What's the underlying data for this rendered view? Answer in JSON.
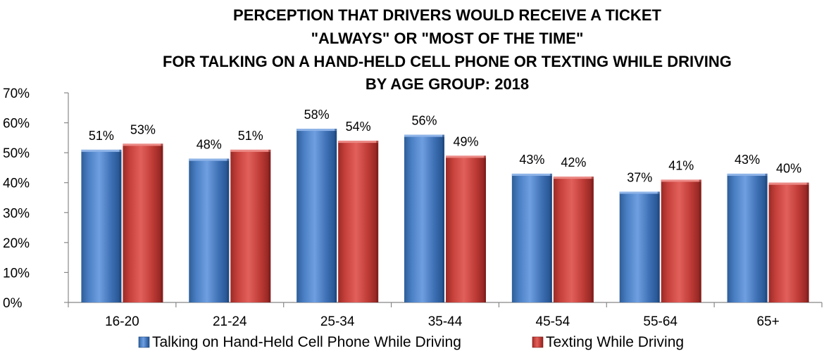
{
  "chart_data": {
    "type": "bar",
    "title_lines": [
      "PERCEPTION THAT DRIVERS WOULD RECEIVE A TICKET",
      "\"ALWAYS\" OR \"MOST OF THE TIME\"",
      "FOR TALKING ON A HAND-HELD CELL PHONE OR TEXTING WHILE DRIVING",
      "BY AGE GROUP:  2018"
    ],
    "xlabel": "",
    "ylabel": "",
    "categories": [
      "16-20",
      "21-24",
      "25-34",
      "35-44",
      "45-54",
      "55-64",
      "65+"
    ],
    "series": [
      {
        "name": "Talking on Hand-Held Cell Phone While Driving",
        "color": "#4f81bd",
        "values": [
          51,
          48,
          58,
          56,
          43,
          37,
          43
        ],
        "labels": [
          "51%",
          "48%",
          "58%",
          "56%",
          "43%",
          "37%",
          "43%"
        ]
      },
      {
        "name": "Texting While Driving",
        "color": "#c0504d",
        "values": [
          53,
          51,
          54,
          49,
          42,
          41,
          40
        ],
        "labels": [
          "53%",
          "51%",
          "54%",
          "49%",
          "42%",
          "41%",
          "40%"
        ]
      }
    ],
    "ylim": [
      0,
      70
    ],
    "yticks": [
      0,
      10,
      20,
      30,
      40,
      50,
      60,
      70
    ],
    "ytick_labels": [
      "0%",
      "10%",
      "20%",
      "30%",
      "40%",
      "50%",
      "60%",
      "70%"
    ],
    "grid": false,
    "legend_position": "bottom"
  }
}
